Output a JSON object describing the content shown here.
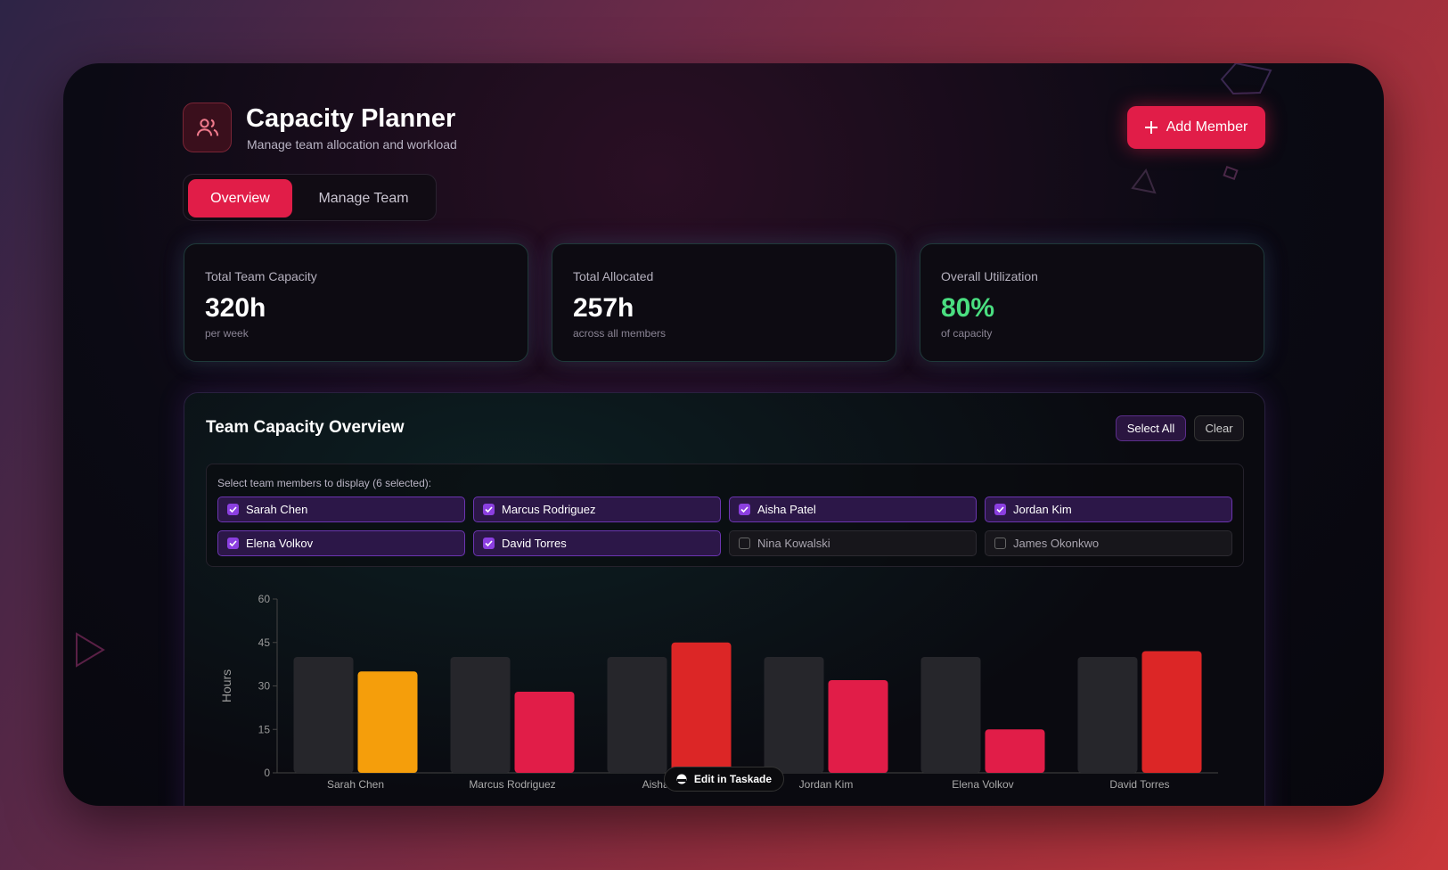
{
  "header": {
    "title": "Capacity Planner",
    "subtitle": "Manage team allocation and workload",
    "add_button": "Add Member"
  },
  "tabs": [
    "Overview",
    "Manage Team"
  ],
  "stats": [
    {
      "label": "Total Team Capacity",
      "value": "320h",
      "note": "per week"
    },
    {
      "label": "Total Allocated",
      "value": "257h",
      "note": "across all members"
    },
    {
      "label": "Overall Utilization",
      "value": "80%",
      "note": "of capacity"
    }
  ],
  "panel": {
    "title": "Team Capacity Overview",
    "select_all": "Select All",
    "clear": "Clear",
    "selector_label": "Select team members to display (6 selected):",
    "members": [
      {
        "name": "Sarah Chen",
        "checked": true
      },
      {
        "name": "Marcus Rodriguez",
        "checked": true
      },
      {
        "name": "Aisha Patel",
        "checked": true
      },
      {
        "name": "Jordan Kim",
        "checked": true
      },
      {
        "name": "Elena Volkov",
        "checked": true
      },
      {
        "name": "David Torres",
        "checked": true
      },
      {
        "name": "Nina Kowalski",
        "checked": false
      },
      {
        "name": "James Okonkwo",
        "checked": false
      }
    ]
  },
  "chart_data": {
    "type": "bar",
    "ylabel": "Hours",
    "categories": [
      "Sarah Chen",
      "Marcus Rodriguez",
      "Aisha Patel",
      "Jordan Kim",
      "Elena Volkov",
      "David Torres"
    ],
    "series": [
      {
        "color": "#26262b",
        "values": [
          40,
          40,
          40,
          40,
          40,
          40
        ]
      },
      {
        "colors": [
          "#f59e0b",
          "#e11d48",
          "#dc2626",
          "#e11d48",
          "#e11d48",
          "#dc2626"
        ],
        "values": [
          35,
          28,
          45,
          32,
          15,
          42
        ]
      }
    ],
    "ylim": [
      0,
      60
    ],
    "yticks": [
      0,
      15,
      30,
      45,
      60
    ],
    "grid": false
  },
  "badge": "Edit in Taskade"
}
